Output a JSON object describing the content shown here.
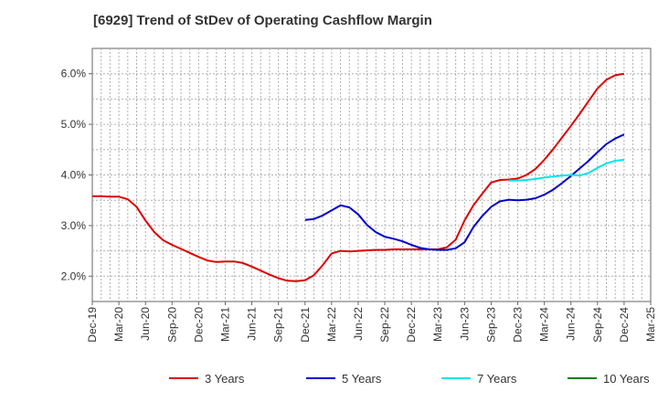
{
  "chart_data": {
    "type": "line",
    "title": "[6929]  Trend of StDev of Operating Cashflow Margin",
    "xlabel": "",
    "ylabel": "",
    "x_tick_labels": [
      "Dec-19",
      "Mar-20",
      "Jun-20",
      "Sep-20",
      "Dec-20",
      "Mar-21",
      "Jun-21",
      "Sep-21",
      "Dec-21",
      "Mar-22",
      "Jun-22",
      "Sep-22",
      "Dec-22",
      "Mar-23",
      "Jun-23",
      "Sep-23",
      "Dec-23",
      "Mar-24",
      "Jun-24",
      "Sep-24",
      "Dec-24",
      "Mar-25"
    ],
    "y_tick_labels": [
      "2.0%",
      "3.0%",
      "4.0%",
      "5.0%",
      "6.0%"
    ],
    "ylim": [
      1.5,
      6.5
    ],
    "grid": true,
    "legend_position": "bottom",
    "series": [
      {
        "name": "3 Years",
        "color": "#dd0000",
        "x": [
          "Dec-19",
          "Jan-20",
          "Feb-20",
          "Mar-20",
          "Apr-20",
          "May-20",
          "Jun-20",
          "Jul-20",
          "Aug-20",
          "Sep-20",
          "Oct-20",
          "Nov-20",
          "Dec-20",
          "Jan-21",
          "Feb-21",
          "Mar-21",
          "Apr-21",
          "May-21",
          "Jun-21",
          "Jul-21",
          "Aug-21",
          "Sep-21",
          "Oct-21",
          "Nov-21",
          "Dec-21",
          "Jan-22",
          "Feb-22",
          "Mar-22",
          "Apr-22",
          "May-22",
          "Jun-22",
          "Jul-22",
          "Aug-22",
          "Sep-22",
          "Oct-22",
          "Nov-22",
          "Dec-22",
          "Jan-23",
          "Feb-23",
          "Mar-23",
          "Apr-23",
          "May-23",
          "Jun-23",
          "Jul-23",
          "Aug-23",
          "Sep-23",
          "Oct-23",
          "Nov-23",
          "Dec-23",
          "Jan-24",
          "Feb-24",
          "Mar-24",
          "Apr-24",
          "May-24",
          "Jun-24",
          "Jul-24",
          "Aug-24",
          "Sep-24",
          "Oct-24",
          "Nov-24",
          "Dec-24"
        ],
        "values": [
          3.58,
          3.58,
          3.57,
          3.57,
          3.52,
          3.37,
          3.1,
          2.87,
          2.71,
          2.62,
          2.54,
          2.46,
          2.38,
          2.31,
          2.28,
          2.29,
          2.29,
          2.26,
          2.19,
          2.11,
          2.03,
          1.96,
          1.91,
          1.9,
          1.92,
          2.02,
          2.22,
          2.45,
          2.5,
          2.49,
          2.5,
          2.51,
          2.52,
          2.52,
          2.53,
          2.53,
          2.53,
          2.53,
          2.53,
          2.53,
          2.57,
          2.72,
          3.1,
          3.4,
          3.63,
          3.85,
          3.9,
          3.91,
          3.93,
          4.0,
          4.12,
          4.3,
          4.51,
          4.74,
          4.97,
          5.21,
          5.46,
          5.71,
          5.88,
          5.97,
          6.0
        ]
      },
      {
        "name": "5 Years",
        "color": "#0000cc",
        "x": [
          "Dec-21",
          "Jan-22",
          "Feb-22",
          "Mar-22",
          "Apr-22",
          "May-22",
          "Jun-22",
          "Jul-22",
          "Aug-22",
          "Sep-22",
          "Oct-22",
          "Nov-22",
          "Dec-22",
          "Jan-23",
          "Feb-23",
          "Mar-23",
          "Apr-23",
          "May-23",
          "Jun-23",
          "Jul-23",
          "Aug-23",
          "Sep-23",
          "Oct-23",
          "Nov-23",
          "Dec-23",
          "Jan-24",
          "Feb-24",
          "Mar-24",
          "Apr-24",
          "May-24",
          "Jun-24",
          "Jul-24",
          "Aug-24",
          "Sep-24",
          "Oct-24",
          "Nov-24",
          "Dec-24"
        ],
        "values": [
          3.11,
          3.13,
          3.2,
          3.3,
          3.4,
          3.36,
          3.22,
          3.01,
          2.87,
          2.78,
          2.74,
          2.69,
          2.62,
          2.56,
          2.53,
          2.52,
          2.52,
          2.55,
          2.67,
          2.97,
          3.19,
          3.37,
          3.48,
          3.51,
          3.5,
          3.51,
          3.54,
          3.61,
          3.71,
          3.84,
          3.98,
          4.13,
          4.28,
          4.45,
          4.61,
          4.72,
          4.8
        ]
      },
      {
        "name": "7 Years",
        "color": "#00e5ee",
        "x": [
          "Nov-23",
          "Dec-23",
          "Jan-24",
          "Feb-24",
          "Mar-24",
          "Apr-24",
          "May-24",
          "Jun-24",
          "Jul-24",
          "Aug-24",
          "Sep-24",
          "Oct-24",
          "Nov-24",
          "Dec-24"
        ],
        "values": [
          3.89,
          3.89,
          3.9,
          3.92,
          3.95,
          3.97,
          3.99,
          4.0,
          3.99,
          4.04,
          4.14,
          4.23,
          4.28,
          4.3
        ]
      },
      {
        "name": "10 Years",
        "color": "#008000",
        "x": [],
        "values": []
      }
    ]
  }
}
